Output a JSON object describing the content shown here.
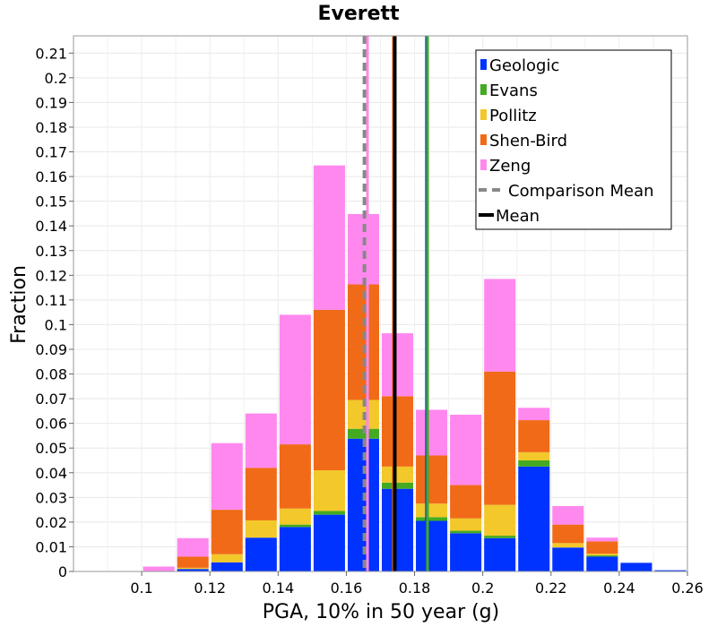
{
  "chart_data": {
    "type": "bar",
    "title": "Everett",
    "xlabel": "PGA, 10% in 50 year (g)",
    "ylabel": "Fraction",
    "xlim": [
      0.08,
      0.26
    ],
    "ylim": [
      0,
      0.217
    ],
    "x_ticks": [
      "0.1",
      "0.12",
      "0.14",
      "0.16",
      "0.18",
      "0.2",
      "0.22",
      "0.24",
      "0.26"
    ],
    "y_ticks": [
      "0",
      "0.01",
      "0.02",
      "0.03",
      "0.04",
      "0.05",
      "0.06",
      "0.07",
      "0.08",
      "0.09",
      "0.1",
      "0.11",
      "0.12",
      "0.13",
      "0.14",
      "0.15",
      "0.16",
      "0.17",
      "0.18",
      "0.19",
      "0.2",
      "0.21"
    ],
    "stacked": true,
    "grid": true,
    "legend_position": "top-right",
    "bin_starts": [
      0.1,
      0.11,
      0.12,
      0.13,
      0.14,
      0.15,
      0.16,
      0.17,
      0.18,
      0.19,
      0.2,
      0.21,
      0.22,
      0.23,
      0.24,
      0.25
    ],
    "bin_width": 0.01,
    "series": [
      {
        "name": "Geologic",
        "color": "#0033ff",
        "values": [
          0.0,
          0.001,
          0.0037,
          0.0137,
          0.018,
          0.023,
          0.0538,
          0.0335,
          0.0205,
          0.0155,
          0.0135,
          0.0425,
          0.0097,
          0.006,
          0.0035,
          0.0005
        ]
      },
      {
        "name": "Evans",
        "color": "#44aa22",
        "values": [
          0.0,
          0.0,
          0.0,
          0.0,
          0.001,
          0.0015,
          0.004,
          0.0025,
          0.0015,
          0.001,
          0.001,
          0.0025,
          0.0,
          0.0005,
          0.0,
          0.0
        ]
      },
      {
        "name": "Pollitz",
        "color": "#f2c82a",
        "values": [
          0.0,
          0.0005,
          0.0033,
          0.007,
          0.0065,
          0.0165,
          0.0117,
          0.0065,
          0.0055,
          0.005,
          0.0125,
          0.0033,
          0.0018,
          0.0007,
          0.0,
          0.0
        ]
      },
      {
        "name": "Shen-Bird",
        "color": "#f06a18",
        "values": [
          0.0,
          0.0045,
          0.018,
          0.0213,
          0.026,
          0.065,
          0.0468,
          0.0285,
          0.0195,
          0.0135,
          0.054,
          0.013,
          0.0075,
          0.005,
          0.0,
          0.0
        ]
      },
      {
        "name": "Zeng",
        "color": "#ff88ee",
        "values": [
          0.002,
          0.0075,
          0.027,
          0.022,
          0.0525,
          0.0585,
          0.0285,
          0.0255,
          0.0185,
          0.0285,
          0.0375,
          0.005,
          0.0075,
          0.0015,
          0.0,
          0.0
        ]
      }
    ],
    "vertical_lines": [
      {
        "name": "Comparison Mean",
        "x": 0.1653,
        "color": "#888888",
        "dashed": true
      },
      {
        "name": "Mean",
        "x": 0.1742,
        "color": "#000000",
        "dashed": false
      }
    ],
    "series_mean_lines": [
      {
        "x": 0.1662,
        "color": "#ff88ee"
      },
      {
        "x": 0.1738,
        "color": "#f06a18"
      },
      {
        "x": 0.1835,
        "color": "#0033ff"
      },
      {
        "x": 0.1838,
        "color": "#44aa22"
      }
    ]
  }
}
